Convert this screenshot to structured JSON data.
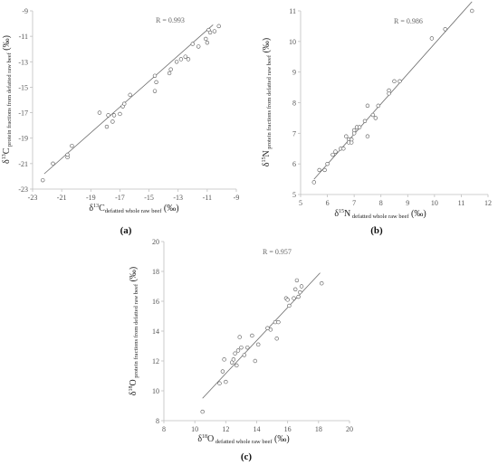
{
  "chart_data": [
    {
      "panel": "a",
      "panel_label": "(a)",
      "type": "scatter",
      "r_label": "R = 0.993",
      "xlabel": {
        "prefix": "δ",
        "sup": "13",
        "element": "C",
        "sub": "defatted whole raw beef",
        "unit": " (‰)"
      },
      "ylabel": {
        "prefix": "δ",
        "sup": "13",
        "element": "C",
        "sub": " protein fractions from defatted raw beef",
        "unit": " (‰)"
      },
      "xlim": [
        -23,
        -9
      ],
      "ylim": [
        -23,
        -9
      ],
      "xticks": [
        -23,
        -21,
        -19,
        -17,
        -15,
        -13,
        -11,
        -9
      ],
      "yticks": [
        -23,
        -21,
        -19,
        -17,
        -15,
        -13,
        -11,
        -9
      ],
      "fit_line": [
        [
          -22.2,
          -21.8
        ],
        [
          -10.6,
          -10.1
        ]
      ],
      "points": [
        [
          -22.3,
          -22.3
        ],
        [
          -21.6,
          -21.0
        ],
        [
          -20.6,
          -20.5
        ],
        [
          -20.6,
          -20.3
        ],
        [
          -20.3,
          -19.6
        ],
        [
          -18.4,
          -17.0
        ],
        [
          -17.9,
          -18.1
        ],
        [
          -17.8,
          -17.2
        ],
        [
          -17.5,
          -17.7
        ],
        [
          -17.4,
          -17.2
        ],
        [
          -17.0,
          -17.1
        ],
        [
          -16.8,
          -16.5
        ],
        [
          -16.7,
          -16.3
        ],
        [
          -16.3,
          -15.6
        ],
        [
          -14.6,
          -15.3
        ],
        [
          -14.6,
          -14.1
        ],
        [
          -14.5,
          -14.6
        ],
        [
          -13.6,
          -13.9
        ],
        [
          -13.5,
          -13.6
        ],
        [
          -13.1,
          -13.0
        ],
        [
          -12.8,
          -12.8
        ],
        [
          -12.5,
          -12.6
        ],
        [
          -12.3,
          -12.8
        ],
        [
          -12.0,
          -11.6
        ],
        [
          -11.6,
          -11.8
        ],
        [
          -11.1,
          -11.2
        ],
        [
          -11.0,
          -11.5
        ],
        [
          -10.9,
          -10.5
        ],
        [
          -10.8,
          -10.7
        ],
        [
          -10.5,
          -10.6
        ],
        [
          -10.2,
          -10.2
        ]
      ]
    },
    {
      "panel": "b",
      "panel_label": "(b)",
      "type": "scatter",
      "r_label": "R = 0.986",
      "xlabel": {
        "prefix": "δ",
        "sup": "15",
        "element": "N",
        "sub": " defatted whole raw beef",
        "unit": " (‰)"
      },
      "ylabel": {
        "prefix": "δ",
        "sup": "15",
        "element": "N",
        "sub": " protein fractions from defatted raw beef",
        "unit": " (‰)"
      },
      "xlim": [
        5,
        12
      ],
      "ylim": [
        5,
        11
      ],
      "xticks": [
        5,
        6,
        7,
        8,
        9,
        10,
        11,
        12
      ],
      "yticks": [
        5,
        6,
        7,
        8,
        9,
        10,
        11
      ],
      "fit_line": [
        [
          5.5,
          5.5
        ],
        [
          11.4,
          11.3
        ]
      ],
      "points": [
        [
          5.5,
          5.4
        ],
        [
          5.7,
          5.8
        ],
        [
          5.9,
          5.8
        ],
        [
          6.0,
          6.0
        ],
        [
          6.2,
          6.3
        ],
        [
          6.3,
          6.4
        ],
        [
          6.5,
          6.5
        ],
        [
          6.6,
          6.5
        ],
        [
          6.7,
          6.9
        ],
        [
          6.8,
          6.8
        ],
        [
          6.8,
          6.7
        ],
        [
          6.9,
          6.7
        ],
        [
          6.9,
          6.8
        ],
        [
          7.0,
          7.0
        ],
        [
          7.0,
          7.1
        ],
        [
          7.1,
          7.2
        ],
        [
          7.2,
          7.2
        ],
        [
          7.4,
          7.4
        ],
        [
          7.5,
          7.9
        ],
        [
          7.5,
          6.9
        ],
        [
          7.7,
          7.6
        ],
        [
          7.8,
          7.5
        ],
        [
          7.9,
          7.9
        ],
        [
          8.3,
          8.3
        ],
        [
          8.3,
          8.4
        ],
        [
          8.5,
          8.7
        ],
        [
          8.7,
          8.7
        ],
        [
          9.9,
          10.1
        ],
        [
          10.4,
          10.4
        ],
        [
          11.4,
          11.0
        ]
      ]
    },
    {
      "panel": "c",
      "panel_label": "(c)",
      "type": "scatter",
      "r_label": "R = 0.957",
      "xlabel": {
        "prefix": "δ",
        "sup": "18",
        "element": "O",
        "sub": " defatted whole raw beef",
        "unit": " (‰)"
      },
      "ylabel": {
        "prefix": "δ",
        "sup": "18",
        "element": "O",
        "sub": " protein fractions from defatted raw beef",
        "unit": " (‰)"
      },
      "xlim": [
        8,
        20
      ],
      "ylim": [
        8,
        20
      ],
      "xticks": [
        8,
        10,
        12,
        14,
        16,
        18,
        20
      ],
      "yticks": [
        8,
        10,
        12,
        14,
        16,
        18,
        20
      ],
      "fit_line": [
        [
          10.5,
          9.5
        ],
        [
          18.1,
          17.9
        ]
      ],
      "points": [
        [
          10.5,
          8.6
        ],
        [
          11.6,
          10.5
        ],
        [
          11.8,
          11.3
        ],
        [
          11.9,
          12.1
        ],
        [
          12.0,
          10.6
        ],
        [
          12.4,
          11.9
        ],
        [
          12.5,
          12.1
        ],
        [
          12.6,
          12.5
        ],
        [
          12.7,
          11.7
        ],
        [
          12.8,
          12.7
        ],
        [
          12.9,
          13.6
        ],
        [
          13.0,
          12.9
        ],
        [
          13.2,
          12.4
        ],
        [
          13.4,
          12.9
        ],
        [
          13.7,
          13.7
        ],
        [
          13.9,
          12.0
        ],
        [
          14.1,
          13.1
        ],
        [
          14.7,
          14.2
        ],
        [
          14.9,
          14.1
        ],
        [
          15.2,
          14.6
        ],
        [
          15.3,
          13.5
        ],
        [
          15.4,
          14.6
        ],
        [
          15.9,
          16.2
        ],
        [
          16.0,
          16.1
        ],
        [
          16.1,
          15.7
        ],
        [
          16.4,
          16.2
        ],
        [
          16.5,
          16.8
        ],
        [
          16.6,
          17.4
        ],
        [
          16.7,
          16.3
        ],
        [
          16.8,
          16.6
        ],
        [
          16.9,
          17.0
        ],
        [
          18.2,
          17.2
        ]
      ]
    }
  ]
}
